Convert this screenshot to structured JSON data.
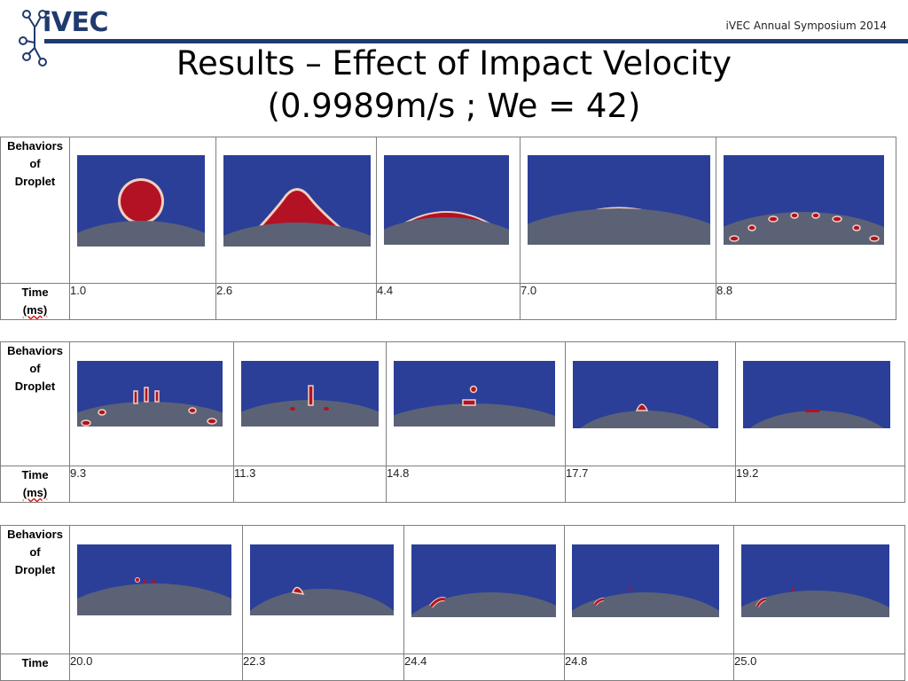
{
  "header": {
    "logo_text": "iVEC",
    "symposium": "iVEC Annual Symposium 2014"
  },
  "title": {
    "line1": "Results – Effect of Impact Velocity",
    "line2": "(0.9989m/s ; We = 42)"
  },
  "labels": {
    "behaviors_line1": "Behaviors",
    "behaviors_line2": "of",
    "behaviors_line3": "Droplet",
    "time": "Time",
    "time_unit": "(ms)"
  },
  "colors": {
    "fluid_background": "#2b3f99",
    "droplet": "#b31224",
    "droplet_edge": "#f0d0c0",
    "surface": "#5b6276",
    "header_rule": "#1f3a6e"
  },
  "rows": [
    {
      "times": [
        "1.0",
        "2.6",
        "4.4",
        "7.0",
        "8.8"
      ]
    },
    {
      "times": [
        "9.3",
        "11.3",
        "14.8",
        "17.7",
        "19.2"
      ]
    },
    {
      "times": [
        "20.0",
        "22.3",
        "24.4",
        "24.8",
        "25.0"
      ]
    }
  ]
}
